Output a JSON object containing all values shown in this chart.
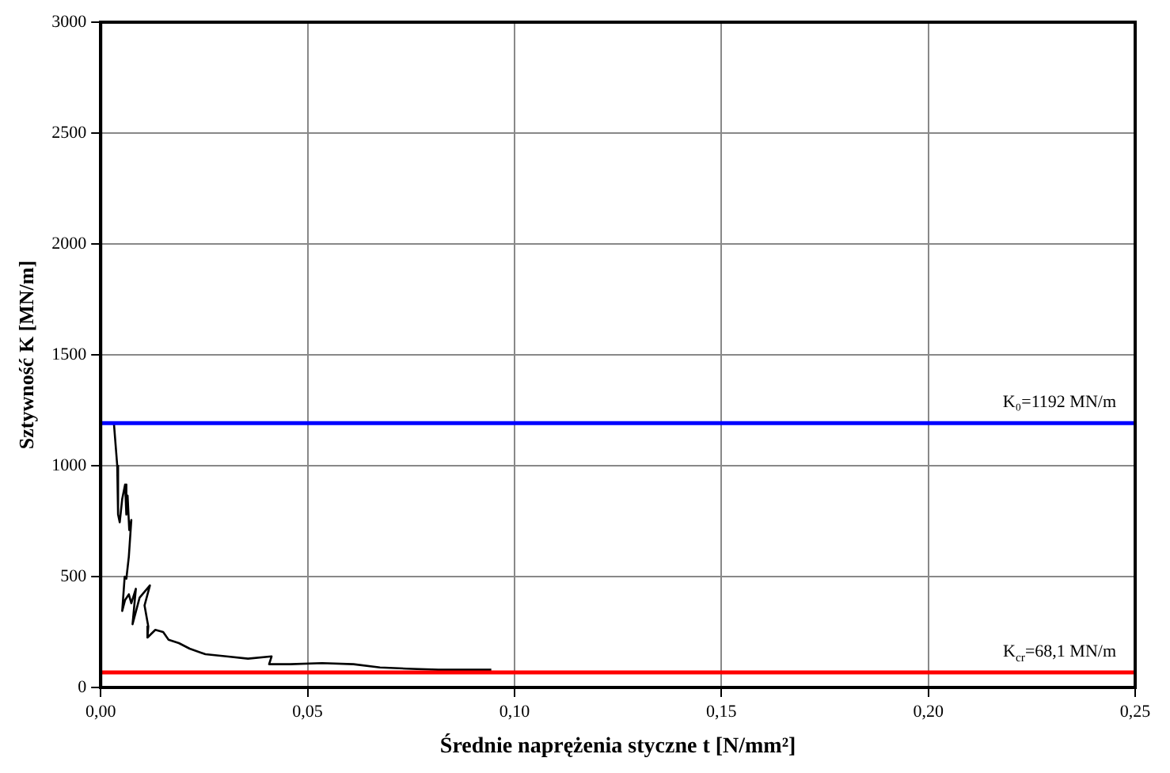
{
  "chart_data": {
    "type": "line",
    "xlabel": "Średnie naprężenia styczne t [N/mm²]",
    "ylabel": "Sztywność K [MN/m]",
    "xlim": [
      0,
      0.25
    ],
    "xticks": [
      {
        "value": 0,
        "label": "0,00"
      },
      {
        "value": 0.05,
        "label": "0,05"
      },
      {
        "value": 0.1,
        "label": "0,10"
      },
      {
        "value": 0.15,
        "label": "0,15"
      },
      {
        "value": 0.2,
        "label": "0,20"
      },
      {
        "value": 0.25,
        "label": "0,25"
      }
    ],
    "ylim": [
      0,
      3000
    ],
    "yticks": [
      0,
      500,
      1000,
      1500,
      2000,
      2500,
      3000
    ],
    "grid": true,
    "legend": false,
    "marker": "none",
    "line_style": "solid",
    "series": [
      {
        "color": "#000000",
        "x": [
          0.0032,
          0.004,
          0.0042,
          0.0046,
          0.0052,
          0.0059,
          0.0062,
          0.0065,
          0.0069,
          0.0074,
          0.0068,
          0.0062,
          0.0058,
          0.0052,
          0.0059,
          0.0068,
          0.0074,
          0.0085,
          0.0077,
          0.0094,
          0.0119,
          0.0106,
          0.0115,
          0.0113,
          0.0132,
          0.0151,
          0.0164,
          0.0189,
          0.0215,
          0.0253,
          0.0304,
          0.0356,
          0.0413,
          0.0407,
          0.0458,
          0.0535,
          0.0611,
          0.0675,
          0.0739,
          0.0816,
          0.0905,
          0.0944
        ],
        "values": [
          1190,
          1000,
          780,
          745,
          850,
          915,
          780,
          865,
          710,
          755,
          590,
          490,
          500,
          345,
          395,
          420,
          380,
          445,
          285,
          405,
          460,
          370,
          275,
          225,
          260,
          250,
          215,
          200,
          175,
          150,
          140,
          130,
          140,
          105,
          105,
          110,
          105,
          90,
          85,
          80,
          80,
          80
        ]
      }
    ],
    "ref_lines": [
      {
        "axis": "y",
        "value": 1192,
        "label": "K₀=1192 MN/m",
        "color": "#0000ff"
      },
      {
        "axis": "y",
        "value": 68.1,
        "label": "K$_{cr}$=68,1 MN/m",
        "color": "#ff0000"
      }
    ]
  }
}
